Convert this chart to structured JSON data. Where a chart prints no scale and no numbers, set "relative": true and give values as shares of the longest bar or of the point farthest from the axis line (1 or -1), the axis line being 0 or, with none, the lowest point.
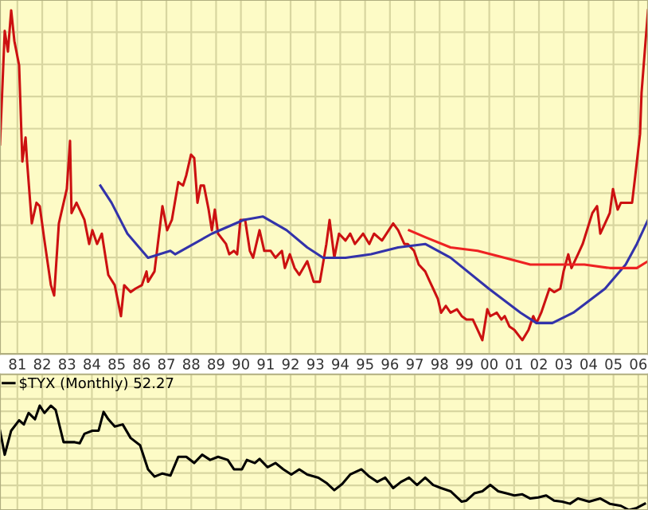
{
  "chart_data": [
    {
      "type": "line",
      "relative": true,
      "grid": true,
      "tick_labels": "x",
      "xlim": [
        1980.3,
        2006.39
      ],
      "xticks": [
        {
          "value": 1981,
          "label": "81"
        },
        {
          "value": 1982,
          "label": "82"
        },
        {
          "value": 1983,
          "label": "83"
        },
        {
          "value": 1984,
          "label": "84"
        },
        {
          "value": 1985,
          "label": "85"
        },
        {
          "value": 1986,
          "label": "86"
        },
        {
          "value": 1987,
          "label": "87"
        },
        {
          "value": 1988,
          "label": "88"
        },
        {
          "value": 1989,
          "label": "89"
        },
        {
          "value": 1990,
          "label": "90"
        },
        {
          "value": 1991,
          "label": "91"
        },
        {
          "value": 1992,
          "label": "92"
        },
        {
          "value": 1993,
          "label": "93"
        },
        {
          "value": 1994,
          "label": "94"
        },
        {
          "value": 1995,
          "label": "95"
        },
        {
          "value": 1996,
          "label": "96"
        },
        {
          "value": 1997,
          "label": "97"
        },
        {
          "value": 1998,
          "label": "98"
        },
        {
          "value": 1999,
          "label": "99"
        },
        {
          "value": 2000,
          "label": "00"
        },
        {
          "value": 2001,
          "label": "01"
        },
        {
          "value": 2002,
          "label": "02"
        },
        {
          "value": 2003,
          "label": "03"
        },
        {
          "value": 2004,
          "label": "04"
        },
        {
          "value": 2005,
          "label": "05"
        },
        {
          "value": 2006,
          "label": "06"
        }
      ],
      "series": [
        {
          "color": "#cc1111",
          "x": [
            1980.3,
            1980.49,
            1980.62,
            1980.75,
            1980.88,
            1981.07,
            1981.2,
            1981.33,
            1981.39,
            1981.58,
            1981.77,
            1981.9,
            1982.09,
            1982.35,
            1982.48,
            1982.67,
            1982.99,
            1983.12,
            1983.18,
            1983.38,
            1983.7,
            1983.89,
            1984.02,
            1984.21,
            1984.4,
            1984.66,
            1984.92,
            1985.17,
            1985.3,
            1985.56,
            1985.75,
            1986.01,
            1986.2,
            1986.26,
            1986.52,
            1986.84,
            1987.03,
            1987.22,
            1987.48,
            1987.67,
            1987.8,
            1987.99,
            1988.12,
            1988.25,
            1988.38,
            1988.51,
            1988.7,
            1988.83,
            1988.95,
            1989.08,
            1989.4,
            1989.53,
            1989.72,
            1989.85,
            1989.98,
            1990.17,
            1990.36,
            1990.49,
            1990.75,
            1990.94,
            1991.2,
            1991.39,
            1991.65,
            1991.77,
            1991.97,
            1992.16,
            1992.35,
            1992.67,
            1992.93,
            1993.18,
            1993.44,
            1993.57,
            1993.76,
            1993.95,
            1994.21,
            1994.4,
            1994.59,
            1994.92,
            1995.17,
            1995.36,
            1995.68,
            1996.13,
            1996.33,
            1996.58,
            1996.71,
            1996.97,
            1997.16,
            1997.42,
            1997.61,
            1997.74,
            1997.93,
            1998.06,
            1998.25,
            1998.44,
            1998.7,
            1998.89,
            1999.08,
            1999.34,
            1999.53,
            1999.72,
            1999.92,
            2000.04,
            2000.3,
            2000.49,
            2000.62,
            2000.81,
            2001.01,
            2001.33,
            2001.58,
            2001.77,
            2001.9,
            2002.09,
            2002.42,
            2002.61,
            2002.86,
            2002.99,
            2003.18,
            2003.31,
            2003.57,
            2003.76,
            2003.89,
            2004.15,
            2004.34,
            2004.47,
            2004.66,
            2004.85,
            2004.98,
            2005.17,
            2005.3,
            2005.49,
            2005.75,
            2005.88,
            2006.07,
            2006.13,
            2006.26,
            2006.39
          ],
          "values": [
            0.61,
            0.94,
            0.88,
            1.0,
            0.91,
            0.84,
            0.56,
            0.63,
            0.56,
            0.38,
            0.44,
            0.43,
            0.33,
            0.2,
            0.17,
            0.38,
            0.48,
            0.62,
            0.41,
            0.44,
            0.39,
            0.32,
            0.36,
            0.32,
            0.35,
            0.23,
            0.2,
            0.11,
            0.2,
            0.18,
            0.19,
            0.2,
            0.24,
            0.21,
            0.24,
            0.43,
            0.36,
            0.39,
            0.5,
            0.49,
            0.52,
            0.58,
            0.57,
            0.44,
            0.49,
            0.49,
            0.42,
            0.36,
            0.42,
            0.35,
            0.32,
            0.29,
            0.3,
            0.29,
            0.39,
            0.39,
            0.3,
            0.28,
            0.36,
            0.3,
            0.3,
            0.28,
            0.3,
            0.25,
            0.29,
            0.25,
            0.23,
            0.27,
            0.21,
            0.21,
            0.32,
            0.39,
            0.28,
            0.35,
            0.33,
            0.35,
            0.32,
            0.35,
            0.32,
            0.35,
            0.33,
            0.38,
            0.36,
            0.32,
            0.32,
            0.3,
            0.26,
            0.24,
            0.21,
            0.19,
            0.16,
            0.12,
            0.14,
            0.12,
            0.13,
            0.11,
            0.1,
            0.1,
            0.07,
            0.04,
            0.13,
            0.11,
            0.12,
            0.1,
            0.11,
            0.08,
            0.07,
            0.04,
            0.07,
            0.11,
            0.09,
            0.12,
            0.19,
            0.18,
            0.19,
            0.24,
            0.29,
            0.25,
            0.29,
            0.32,
            0.35,
            0.41,
            0.43,
            0.35,
            0.38,
            0.41,
            0.48,
            0.42,
            0.44,
            0.44,
            0.44,
            0.52,
            0.64,
            0.76,
            0.88,
            1.0
          ]
        },
        {
          "color": "#3333aa",
          "x": [
            1984.34,
            1984.79,
            1985.43,
            1986.26,
            1987.16,
            1987.35,
            1988.83,
            1990.11,
            1990.88,
            1991.84,
            1992.67,
            1993.31,
            1994.21,
            1995.24,
            1996.33,
            1997.42,
            1998.44,
            1999.98,
            2001.26,
            2001.9,
            2002.54,
            2003.38,
            2004.66,
            2005.49,
            2005.94,
            2006.39
          ],
          "values": [
            0.49,
            0.44,
            0.35,
            0.28,
            0.3,
            0.29,
            0.35,
            0.39,
            0.4,
            0.36,
            0.31,
            0.28,
            0.28,
            0.29,
            0.31,
            0.32,
            0.28,
            0.19,
            0.12,
            0.09,
            0.09,
            0.12,
            0.19,
            0.26,
            0.32,
            0.39
          ]
        },
        {
          "color": "#ee2222",
          "x": [
            1996.77,
            1997.42,
            1998.44,
            1999.53,
            2000.62,
            2001.65,
            2002.74,
            2003.83,
            2004.85,
            2005.94,
            2006.39
          ],
          "values": [
            0.36,
            0.34,
            0.31,
            0.3,
            0.28,
            0.26,
            0.26,
            0.26,
            0.25,
            0.25,
            0.27
          ]
        }
      ]
    },
    {
      "type": "line",
      "relative": true,
      "grid": true,
      "tick_labels": false,
      "legend": "top left",
      "xlim": [
        1980.3,
        2006.39
      ],
      "xticks": [
        1981,
        1982,
        1983,
        1984,
        1985,
        1986,
        1987,
        1988,
        1989,
        1990,
        1991,
        1992,
        1993,
        1994,
        1995,
        1996,
        1997,
        1998,
        1999,
        2000,
        2001,
        2002,
        2003,
        2004,
        2005,
        2006
      ],
      "series": [
        {
          "name": "$TYX (Monthly) 52.27",
          "color": "#000000",
          "x": [
            1980.3,
            1980.49,
            1980.75,
            1981.07,
            1981.26,
            1981.45,
            1981.71,
            1981.9,
            1982.09,
            1982.35,
            1982.54,
            1982.86,
            1983.31,
            1983.51,
            1983.7,
            1984.02,
            1984.27,
            1984.47,
            1984.66,
            1984.92,
            1985.24,
            1985.56,
            1985.94,
            1986.26,
            1986.52,
            1986.84,
            1987.16,
            1987.48,
            1987.8,
            1988.12,
            1988.44,
            1988.76,
            1989.08,
            1989.47,
            1989.72,
            1990.04,
            1990.24,
            1990.56,
            1990.75,
            1991.07,
            1991.39,
            1991.71,
            1992.03,
            1992.35,
            1992.67,
            1993.12,
            1993.44,
            1993.76,
            1994.08,
            1994.4,
            1994.85,
            1995.17,
            1995.49,
            1995.81,
            1996.13,
            1996.45,
            1996.77,
            1997.09,
            1997.42,
            1997.74,
            1998.06,
            1998.44,
            1998.89,
            1999.08,
            1999.4,
            1999.72,
            2000.04,
            2000.36,
            2000.68,
            2001.01,
            2001.33,
            2001.65,
            2001.97,
            2002.29,
            2002.61,
            2002.93,
            2003.25,
            2003.57,
            2004.02,
            2004.47,
            2004.85,
            2005.3,
            2005.62,
            2005.94,
            2006.26
          ],
          "values": [
            0.76,
            0.53,
            0.76,
            0.86,
            0.82,
            0.93,
            0.87,
            1.0,
            0.93,
            1.0,
            0.96,
            0.65,
            0.65,
            0.64,
            0.73,
            0.76,
            0.76,
            0.94,
            0.87,
            0.8,
            0.82,
            0.69,
            0.62,
            0.39,
            0.32,
            0.35,
            0.33,
            0.51,
            0.51,
            0.45,
            0.53,
            0.48,
            0.51,
            0.48,
            0.39,
            0.39,
            0.48,
            0.45,
            0.49,
            0.41,
            0.45,
            0.39,
            0.34,
            0.39,
            0.34,
            0.31,
            0.26,
            0.19,
            0.25,
            0.34,
            0.39,
            0.32,
            0.27,
            0.31,
            0.21,
            0.27,
            0.31,
            0.24,
            0.31,
            0.24,
            0.21,
            0.18,
            0.08,
            0.09,
            0.16,
            0.18,
            0.24,
            0.18,
            0.16,
            0.14,
            0.15,
            0.11,
            0.12,
            0.14,
            0.09,
            0.08,
            0.06,
            0.11,
            0.08,
            0.11,
            0.06,
            0.04,
            0.0,
            0.02,
            0.06
          ]
        }
      ]
    }
  ]
}
